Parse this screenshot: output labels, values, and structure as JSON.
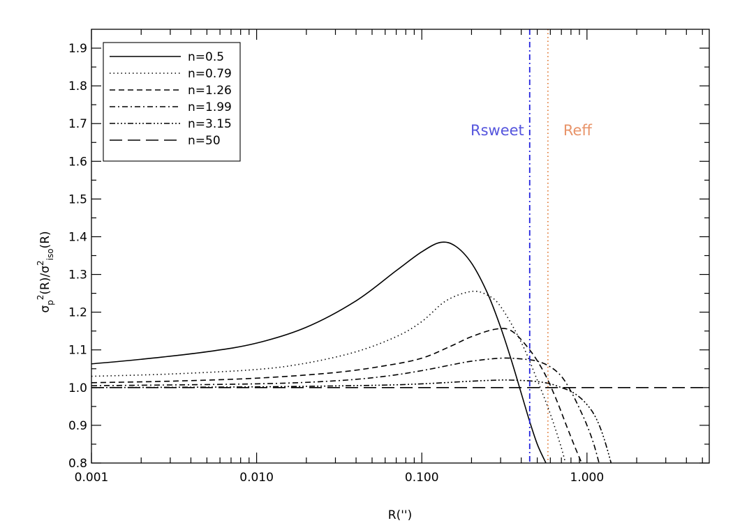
{
  "chart_data": {
    "type": "line",
    "xscale": "log",
    "xlim": [
      0.001,
      5.5
    ],
    "ylim": [
      0.8,
      1.95
    ],
    "xlabel": "R('')",
    "ylabel": {
      "sigma": "σ",
      "sub_p": "p",
      "sup_2": "2",
      "r_term": "(R)",
      "slash": "/",
      "sub_iso": "iso"
    },
    "x_ticks": [
      {
        "value": 0.001,
        "label": "0.001"
      },
      {
        "value": 0.01,
        "label": "0.010"
      },
      {
        "value": 0.1,
        "label": "0.100"
      },
      {
        "value": 1.0,
        "label": "1.000"
      }
    ],
    "y_ticks": [
      {
        "value": 0.8,
        "label": "0.8"
      },
      {
        "value": 0.9,
        "label": "0.9"
      },
      {
        "value": 1.0,
        "label": "1.0"
      },
      {
        "value": 1.1,
        "label": "1.1"
      },
      {
        "value": 1.2,
        "label": "1.2"
      },
      {
        "value": 1.3,
        "label": "1.3"
      },
      {
        "value": 1.4,
        "label": "1.4"
      },
      {
        "value": 1.5,
        "label": "1.5"
      },
      {
        "value": 1.6,
        "label": "1.6"
      },
      {
        "value": 1.7,
        "label": "1.7"
      },
      {
        "value": 1.8,
        "label": "1.8"
      },
      {
        "value": 1.9,
        "label": "1.9"
      }
    ],
    "legend_position": "top-left",
    "series": [
      {
        "name": "n=0.5",
        "dash": "solid",
        "x": [
          0.001,
          0.002,
          0.005,
          0.01,
          0.02,
          0.04,
          0.07,
          0.1,
          0.13,
          0.16,
          0.2,
          0.25,
          0.3,
          0.35,
          0.4,
          0.45,
          0.5,
          0.55,
          0.58
        ],
        "y": [
          1.063,
          1.075,
          1.095,
          1.118,
          1.16,
          1.23,
          1.31,
          1.36,
          1.385,
          1.375,
          1.33,
          1.25,
          1.16,
          1.07,
          0.985,
          0.91,
          0.85,
          0.81,
          0.79
        ]
      },
      {
        "name": "n=0.79",
        "dash": "dotted",
        "x": [
          0.001,
          0.003,
          0.01,
          0.02,
          0.04,
          0.07,
          0.1,
          0.14,
          0.2,
          0.25,
          0.3,
          0.4,
          0.5,
          0.6,
          0.7,
          0.75
        ],
        "y": [
          1.03,
          1.036,
          1.048,
          1.065,
          1.095,
          1.135,
          1.175,
          1.23,
          1.255,
          1.245,
          1.215,
          1.12,
          1.02,
          0.93,
          0.84,
          0.79
        ]
      },
      {
        "name": "n=1.26",
        "dash": "dashed",
        "x": [
          0.001,
          0.003,
          0.01,
          0.03,
          0.06,
          0.1,
          0.15,
          0.2,
          0.28,
          0.35,
          0.45,
          0.55,
          0.65,
          0.75,
          0.85,
          0.95
        ],
        "y": [
          1.013,
          1.017,
          1.025,
          1.04,
          1.058,
          1.078,
          1.11,
          1.135,
          1.155,
          1.15,
          1.1,
          1.04,
          0.97,
          0.9,
          0.84,
          0.79
        ]
      },
      {
        "name": "n=1.99",
        "dash": "dashdot",
        "x": [
          0.001,
          0.01,
          0.03,
          0.06,
          0.1,
          0.15,
          0.2,
          0.3,
          0.4,
          0.5,
          0.6,
          0.7,
          0.8,
          0.9,
          1.0,
          1.1,
          1.2
        ],
        "y": [
          1.005,
          1.01,
          1.018,
          1.03,
          1.045,
          1.06,
          1.07,
          1.078,
          1.076,
          1.07,
          1.055,
          1.03,
          0.99,
          0.945,
          0.9,
          0.85,
          0.79
        ]
      },
      {
        "name": "n=3.15",
        "dash": "dashdotdotdot",
        "x": [
          0.001,
          0.01,
          0.05,
          0.1,
          0.2,
          0.3,
          0.4,
          0.5,
          0.6,
          0.7,
          0.8,
          0.9,
          1.0,
          1.1,
          1.2,
          1.3,
          1.42
        ],
        "y": [
          1.0,
          1.002,
          1.006,
          1.01,
          1.017,
          1.02,
          1.019,
          1.016,
          1.01,
          1.0,
          0.99,
          0.975,
          0.955,
          0.93,
          0.895,
          0.85,
          0.79
        ]
      },
      {
        "name": "n=50",
        "dash": "longdash",
        "x": [
          0.001,
          5.5
        ],
        "y": [
          1.0,
          1.0
        ]
      }
    ],
    "vlines": [
      {
        "name": "Rsweet",
        "x": 0.45,
        "color": "#2222dd",
        "dash": "dashdot",
        "label_color": "#5555dd"
      },
      {
        "name": "Reff",
        "x": 0.58,
        "color": "#e07b39",
        "dash": "dotted",
        "label_color": "#e8946a"
      }
    ]
  }
}
